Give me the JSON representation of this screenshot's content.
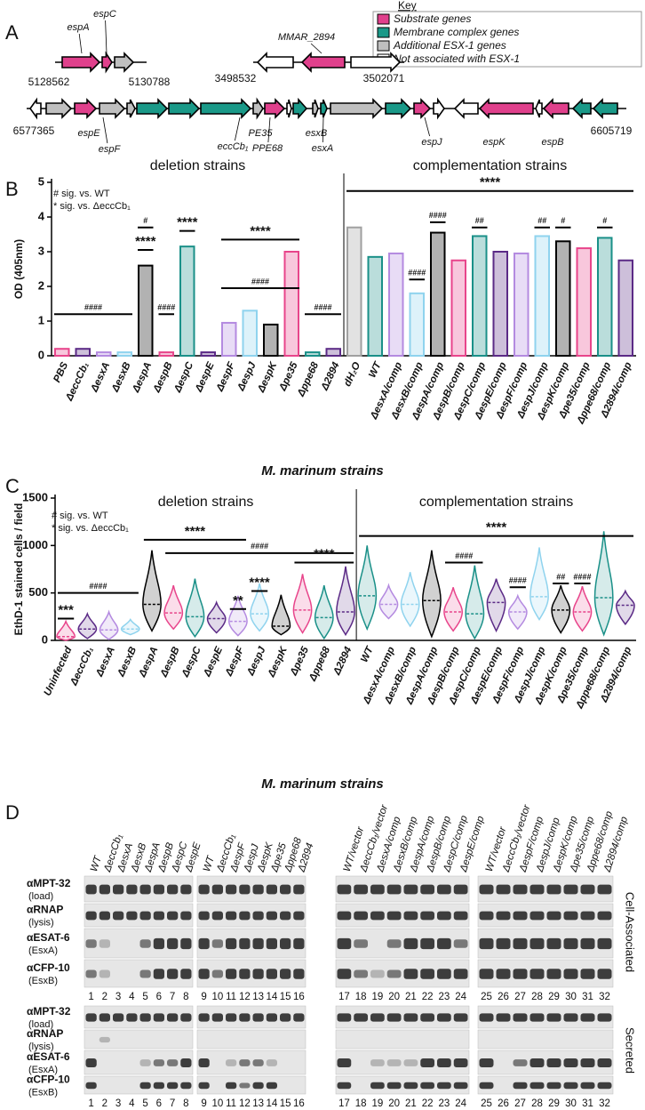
{
  "gene_map": {
    "panel": "A",
    "key": {
      "title": "Key",
      "items": [
        {
          "label": "Substrate genes",
          "color": "#e0408c"
        },
        {
          "label": "Membrane complex genes",
          "color": "#1a9988"
        },
        {
          "label": "Additional ESX-1 genes",
          "color": "#bfbfbf"
        },
        {
          "label": "Not associated with ESX-1",
          "color": "#ffffff"
        }
      ]
    },
    "loci": [
      {
        "start": 5128562,
        "end": 5130788,
        "genes": [
          "espA",
          "espC"
        ]
      },
      {
        "start": 3498532,
        "end": 3502071,
        "genes": [
          "MMAR_2894"
        ]
      },
      {
        "start": 6577365,
        "end": 6605719,
        "genes": [
          "espE",
          "espF",
          "eccCb₁",
          "PE35",
          "PPE68",
          "esxB",
          "esxA",
          "espJ",
          "espK",
          "espB"
        ]
      }
    ]
  },
  "chart_data": [
    {
      "type": "bar",
      "panel": "B",
      "ylabel": "OD (405nm)",
      "xlabel": "M. marinum strains",
      "groups": [
        "deletion strains",
        "complementation strains"
      ],
      "legend_notes": [
        "# sig. vs. WT",
        "* sig. vs. ΔeccCb₁"
      ],
      "categories": [
        "PBS",
        "ΔeccCb₁",
        "ΔesxA",
        "ΔesxB",
        "ΔespA",
        "ΔespB",
        "ΔespC",
        "ΔespE",
        "ΔespF",
        "ΔespJ",
        "ΔespK",
        "Δpe35",
        "Δppe68",
        "Δ2894",
        "dH₂O",
        "WT",
        "ΔesxA/comp",
        "ΔesxB/comp",
        "ΔespA/comp",
        "ΔespB/comp",
        "ΔespC/comp",
        "ΔespE/comp",
        "ΔespF/comp",
        "ΔespJ/comp",
        "ΔespK/comp",
        "Δpe35/comp",
        "Δppe68/comp",
        "Δ2894/comp"
      ],
      "values": [
        0.2,
        0.2,
        0.1,
        0.1,
        2.6,
        0.1,
        3.15,
        0.1,
        0.95,
        1.3,
        0.9,
        3.0,
        0.1,
        0.2,
        3.7,
        2.85,
        2.95,
        1.8,
        3.55,
        2.75,
        3.45,
        3.0,
        2.95,
        3.45,
        3.3,
        3.1,
        3.4,
        2.75
      ],
      "colors": [
        "#e8458b",
        "#5b2a86",
        "#b48ae0",
        "#8fd3ee",
        "#000000",
        "#e8458b",
        "#1a9088",
        "#5b2a86",
        "#b48ae0",
        "#8fd3ee",
        "#000000",
        "#e8458b",
        "#1a9088",
        "#5b2a86",
        "#a0a0a0",
        "#1a9088",
        "#b48ae0",
        "#8fd3ee",
        "#000000",
        "#e8458b",
        "#1a9088",
        "#5b2a86",
        "#b48ae0",
        "#8fd3ee",
        "#000000",
        "#e8458b",
        "#1a9088",
        "#5b2a86"
      ],
      "ylim": [
        0,
        5
      ],
      "yticks": [
        0,
        1,
        2,
        3,
        4,
        5
      ],
      "annotations": [
        "####",
        "#",
        "****",
        "####",
        "****",
        "####",
        "****",
        "####",
        "****",
        "####",
        "####",
        "##",
        "##",
        "#",
        "#"
      ]
    },
    {
      "type": "violin",
      "panel": "C",
      "ylabel": "EthD-1 stained cells / field",
      "xlabel": "M. marinum strains",
      "groups": [
        "deletion strains",
        "complementation strains"
      ],
      "legend_notes": [
        "# sig. vs. WT",
        "* sig. vs. ΔeccCb₁"
      ],
      "categories": [
        "Uninfected",
        "ΔeccCb₁",
        "ΔesxA",
        "ΔesxB",
        "ΔespA",
        "ΔespB",
        "ΔespC",
        "ΔespE",
        "ΔespF",
        "ΔespJ",
        "ΔespK",
        "Δpe35",
        "Δppe68",
        "Δ2894",
        "WT",
        "ΔesxA/comp",
        "ΔesxB/comp",
        "ΔespA/comp",
        "ΔespB/comp",
        "ΔespC/comp",
        "ΔespE/comp",
        "ΔespF/comp",
        "ΔespJ/comp",
        "ΔespK/comp",
        "Δpe35/comp",
        "Δppe68/comp",
        "Δ2894/comp"
      ],
      "values": [
        40,
        120,
        110,
        120,
        380,
        290,
        250,
        230,
        200,
        280,
        150,
        320,
        240,
        300,
        470,
        380,
        380,
        420,
        300,
        280,
        400,
        300,
        460,
        320,
        300,
        450,
        370
      ],
      "min": [
        0,
        20,
        10,
        60,
        100,
        120,
        40,
        80,
        50,
        100,
        60,
        80,
        20,
        60,
        120,
        230,
        150,
        40,
        100,
        20,
        100,
        120,
        220,
        80,
        100,
        60,
        170
      ],
      "max": [
        200,
        280,
        300,
        220,
        950,
        580,
        650,
        400,
        470,
        600,
        480,
        700,
        580,
        780,
        1000,
        580,
        720,
        950,
        560,
        790,
        650,
        470,
        980,
        580,
        570,
        1150,
        520
      ],
      "colors": [
        "#e8458b",
        "#5b2a86",
        "#b48ae0",
        "#8fd3ee",
        "#000000",
        "#e8458b",
        "#1a9088",
        "#5b2a86",
        "#b48ae0",
        "#8fd3ee",
        "#000000",
        "#e8458b",
        "#1a9088",
        "#5b2a86",
        "#1a9088",
        "#b48ae0",
        "#8fd3ee",
        "#000000",
        "#e8458b",
        "#1a9088",
        "#5b2a86",
        "#b48ae0",
        "#8fd3ee",
        "#000000",
        "#e8458b",
        "#1a9088",
        "#5b2a86"
      ],
      "ylim": [
        0,
        1500
      ],
      "yticks": [
        0,
        500,
        1000,
        1500
      ],
      "annotations": [
        "***",
        "####",
        "****",
        "####",
        "**",
        "****",
        "****",
        "****",
        "####",
        "####",
        "##",
        "####"
      ]
    }
  ],
  "blot": {
    "panel": "D",
    "groups": [
      [
        "WT",
        "ΔeccCb₁",
        "ΔesxA",
        "ΔesxB",
        "ΔespA",
        "ΔespB",
        "ΔespC",
        "ΔespE"
      ],
      [
        "WT",
        "ΔeccCb₁",
        "ΔespF",
        "ΔespJ",
        "ΔespK",
        "Δpe35",
        "Δppe68",
        "Δ2894"
      ],
      [
        "WT/vector",
        "ΔeccCb₁/vector",
        "ΔesxA/comp",
        "ΔesxB/comp",
        "ΔespA/comp",
        "ΔespB/comp",
        "ΔespC/comp",
        "ΔespE/comp"
      ],
      [
        "WT/vector",
        "ΔeccCb₁/vector",
        "ΔespF/comp",
        "ΔespJ/comp",
        "ΔespK/comp",
        "Δpe35/comp",
        "Δppe68/comp",
        "Δ2894/comp"
      ]
    ],
    "rows": [
      {
        "antibody": "αMPT-32",
        "note": "(load)"
      },
      {
        "antibody": "αRNAP",
        "note": "(lysis)"
      },
      {
        "antibody": "αESAT-6",
        "note": "(EsxA)"
      },
      {
        "antibody": "αCFP-10",
        "note": "(EsxB)"
      }
    ],
    "sections": [
      "Cell-Associated",
      "Secreted"
    ],
    "lanes": [
      1,
      2,
      3,
      4,
      5,
      6,
      7,
      8,
      9,
      10,
      11,
      12,
      13,
      14,
      15,
      16,
      17,
      18,
      19,
      20,
      21,
      22,
      23,
      24,
      25,
      26,
      27,
      28,
      29,
      30,
      31,
      32
    ]
  }
}
